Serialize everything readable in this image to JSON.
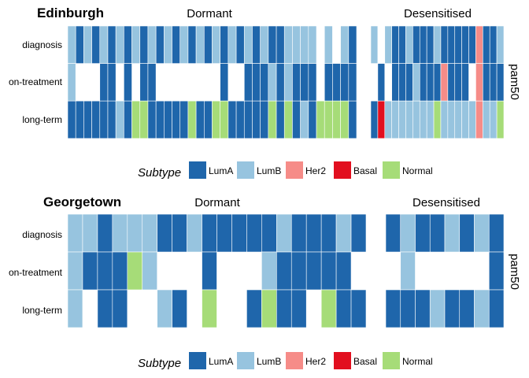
{
  "colors": {
    "LumA": "#1f66ab",
    "LumB": "#97c4df",
    "Her2": "#f68c88",
    "Basal": "#e20f1f",
    "Normal": "#a6dc78",
    "grid_line": "#ffffff"
  },
  "legend_title": "Subtype",
  "legend_items": [
    "LumA",
    "LumB",
    "Her2",
    "Basal",
    "Normal"
  ],
  "strip_label": "pam50",
  "chart_data": [
    {
      "type": "heatmap",
      "title": "Edinburgh",
      "rows": [
        "diagnosis",
        "on-treatment",
        "long-term"
      ],
      "facets": [
        {
          "name": "Dormant",
          "columns": 36,
          "cells": [
            [
              "LumB",
              "LumA",
              "LumB",
              "LumA",
              "LumB",
              "LumA",
              "LumB",
              "LumA",
              "LumB",
              "LumA",
              "LumB",
              "LumA",
              "LumB",
              "LumA",
              "LumB",
              "LumA",
              "LumB",
              "LumA",
              "LumB",
              "LumA",
              "LumB",
              "LumA",
              "LumB",
              "LumA",
              "LumB",
              "LumA",
              "LumA",
              "LumB",
              "LumB",
              "LumB",
              "LumB",
              "null",
              "LumB",
              "null",
              "LumB",
              "LumA"
            ],
            [
              "LumB",
              "null",
              "null",
              "null",
              "LumA",
              "LumA",
              "null",
              "LumA",
              "null",
              "LumA",
              "LumA",
              "null",
              "null",
              "null",
              "null",
              "null",
              "null",
              "null",
              "null",
              "LumA",
              "null",
              "null",
              "LumA",
              "LumA",
              "LumA",
              "LumB",
              "LumA",
              "LumB",
              "LumA",
              "LumA",
              "LumA",
              "null",
              "LumA",
              "LumA",
              "LumA",
              "LumA"
            ],
            [
              "LumA",
              "LumA",
              "LumA",
              "LumA",
              "LumA",
              "LumA",
              "LumB",
              "LumA",
              "Normal",
              "Normal",
              "LumA",
              "LumA",
              "LumA",
              "LumA",
              "LumA",
              "Normal",
              "LumA",
              "LumA",
              "Normal",
              "Normal",
              "LumA",
              "LumA",
              "LumA",
              "LumA",
              "LumA",
              "Normal",
              "LumA",
              "Normal",
              "LumA",
              "LumB",
              "LumA",
              "Normal",
              "Normal",
              "Normal",
              "Normal",
              "LumA"
            ]
          ]
        },
        {
          "name": "Desensitised",
          "columns": 19,
          "cells": [
            [
              "LumB",
              "null",
              "LumB",
              "LumA",
              "LumA",
              "LumB",
              "LumA",
              "LumA",
              "LumA",
              "LumB",
              "LumA",
              "LumA",
              "LumA",
              "LumA",
              "LumA",
              "Her2",
              "LumA",
              "LumA",
              "LumB"
            ],
            [
              "null",
              "LumA",
              "null",
              "LumA",
              "LumA",
              "LumA",
              "LumB",
              "LumA",
              "LumA",
              "LumA",
              "Her2",
              "LumA",
              "LumA",
              "LumA",
              "null",
              "Her2",
              "LumA",
              "LumA",
              "LumA"
            ],
            [
              "LumA",
              "Basal",
              "LumB",
              "LumB",
              "LumB",
              "LumB",
              "LumB",
              "LumB",
              "LumB",
              "Normal",
              "LumB",
              "LumB",
              "LumB",
              "LumB",
              "LumB",
              "Her2",
              "LumB",
              "LumB",
              "Normal"
            ]
          ]
        }
      ]
    },
    {
      "type": "heatmap",
      "title": "Georgetown",
      "rows": [
        "diagnosis",
        "on-treatment",
        "long-term"
      ],
      "facets": [
        {
          "name": "Dormant",
          "columns": 20,
          "cells": [
            [
              "LumB",
              "LumB",
              "LumA",
              "LumB",
              "LumB",
              "LumB",
              "LumA",
              "LumA",
              "LumB",
              "LumA",
              "LumA",
              "LumA",
              "LumA",
              "LumA",
              "LumB",
              "LumA",
              "LumA",
              "LumA",
              "LumB",
              "LumA"
            ],
            [
              "LumB",
              "LumA",
              "LumA",
              "LumA",
              "Normal",
              "LumB",
              "null",
              "null",
              "null",
              "LumA",
              "null",
              "null",
              "null",
              "LumB",
              "LumA",
              "LumA",
              "LumA",
              "LumA",
              "LumA",
              "null"
            ],
            [
              "LumB",
              "null",
              "LumA",
              "LumA",
              "null",
              "null",
              "LumB",
              "LumA",
              "null",
              "Normal",
              "null",
              "null",
              "LumA",
              "Normal",
              "LumA",
              "LumA",
              "null",
              "Normal",
              "LumA",
              "LumA"
            ]
          ]
        },
        {
          "name": "Desensitised",
          "columns": 8,
          "cells": [
            [
              "LumA",
              "LumB",
              "LumA",
              "LumA",
              "LumB",
              "LumA",
              "LumB",
              "LumA"
            ],
            [
              "null",
              "LumB",
              "null",
              "null",
              "null",
              "null",
              "null",
              "LumA"
            ],
            [
              "LumA",
              "LumA",
              "LumA",
              "LumB",
              "LumA",
              "LumA",
              "LumB",
              "LumA"
            ]
          ]
        }
      ]
    }
  ]
}
